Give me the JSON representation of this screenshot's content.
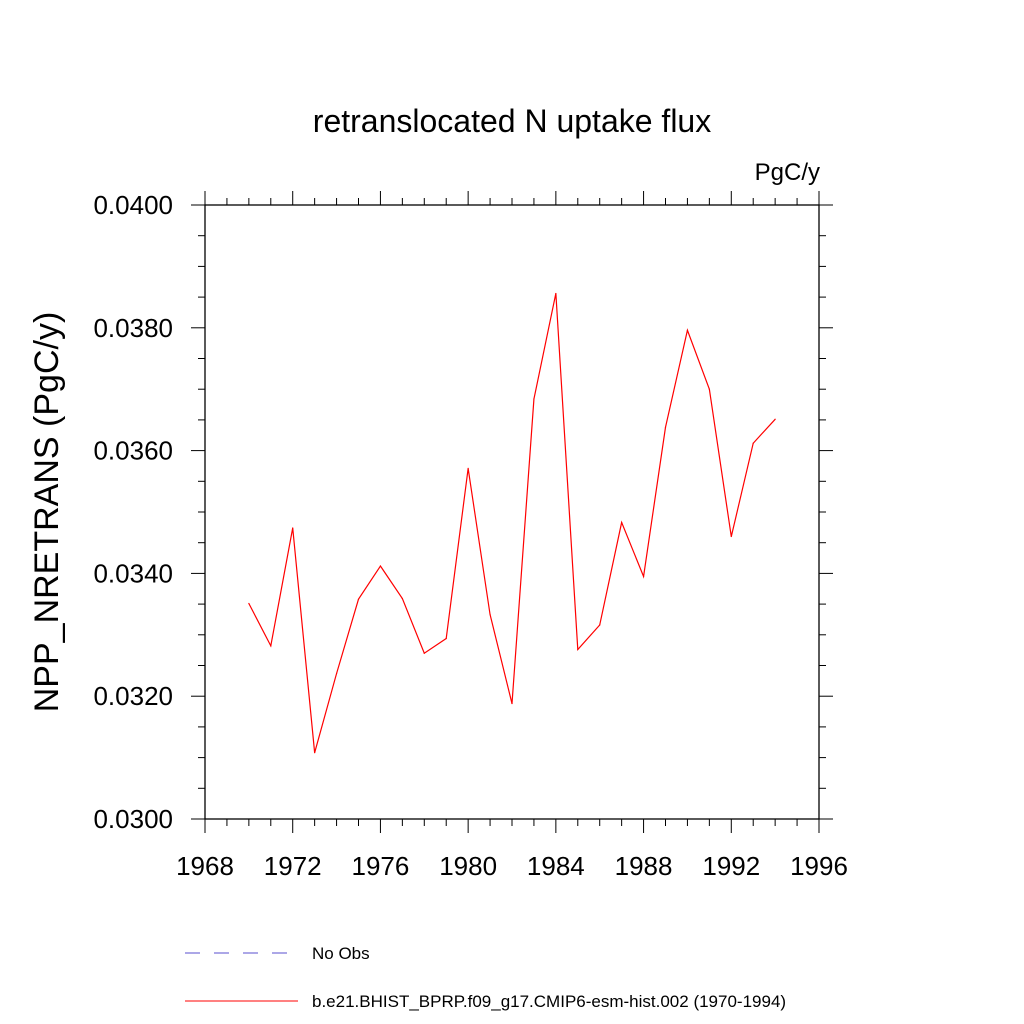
{
  "chart_data": {
    "type": "line",
    "title": "retranslocated N uptake flux",
    "units_label": "PgC/y",
    "ylabel": "NPP_NRETRANS  (PgC/y)",
    "xlabel": "",
    "xlim": [
      1968,
      1996
    ],
    "ylim": [
      0.03,
      0.04
    ],
    "x_ticks": [
      1968,
      1972,
      1976,
      1980,
      1984,
      1988,
      1992,
      1996
    ],
    "x_tick_labels": [
      "1968",
      "1972",
      "1976",
      "1980",
      "1984",
      "1988",
      "1992",
      "1996"
    ],
    "y_ticks": [
      0.03,
      0.032,
      0.034,
      0.036,
      0.038,
      0.04
    ],
    "y_tick_labels": [
      "0.0300",
      "0.0320",
      "0.0340",
      "0.0360",
      "0.0380",
      "0.0400"
    ],
    "x_minor_step": 1,
    "y_minor_step": 0.0005,
    "grid": false,
    "series": [
      {
        "name": "b.e21.BHIST_BPRP.f09_g17.CMIP6-esm-hist.002 (1970-1994)",
        "color": "#ff0000",
        "dash": "solid",
        "x": [
          1970,
          1971,
          1972,
          1973,
          1974,
          1975,
          1976,
          1977,
          1978,
          1979,
          1980,
          1981,
          1982,
          1983,
          1984,
          1985,
          1986,
          1987,
          1988,
          1989,
          1990,
          1991,
          1992,
          1993,
          1994
        ],
        "values": [
          0.03351,
          0.03282,
          0.03474,
          0.03108,
          0.03237,
          0.03358,
          0.03412,
          0.03359,
          0.0327,
          0.03294,
          0.03571,
          0.03333,
          0.03188,
          0.03684,
          0.03856,
          0.03276,
          0.03316,
          0.03483,
          0.03395,
          0.03638,
          0.03796,
          0.037,
          0.0346,
          0.03612,
          0.03651
        ]
      }
    ],
    "legend": [
      {
        "label": "No Obs",
        "color": "#5a4fcf",
        "dash": "dashed"
      },
      {
        "label": "b.e21.BHIST_BPRP.f09_g17.CMIP6-esm-hist.002 (1970-1994)",
        "color": "#ff0000",
        "dash": "solid"
      }
    ],
    "legend_position": "bottom"
  }
}
